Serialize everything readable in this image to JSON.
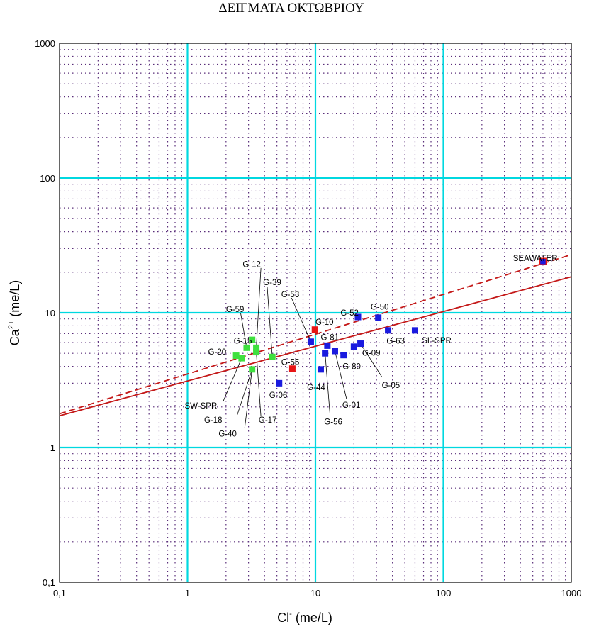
{
  "chart_data": {
    "type": "scatter",
    "title": "ΔΕΙΓΜΑΤΑ ΟΚΤΩΒΡΙΟΥ",
    "xlabel": {
      "base": "Cl",
      "sup": "-",
      "unit": " (me/L)"
    },
    "ylabel": {
      "base": "Ca",
      "sup": "2+",
      "unit": " (me/L)"
    },
    "x_scale": "log",
    "y_scale": "log",
    "xlim": [
      0.1,
      1000
    ],
    "ylim": [
      0.1,
      1000
    ],
    "x_ticks": [
      {
        "value": 0.1,
        "label": "0,1"
      },
      {
        "value": 1,
        "label": "1"
      },
      {
        "value": 10,
        "label": "10"
      },
      {
        "value": 100,
        "label": "100"
      },
      {
        "value": 1000,
        "label": "1000"
      }
    ],
    "y_ticks": [
      {
        "value": 0.1,
        "label": "0,1"
      },
      {
        "value": 1,
        "label": "1"
      },
      {
        "value": 10,
        "label": "10"
      },
      {
        "value": 100,
        "label": "100"
      },
      {
        "value": 1000,
        "label": "1000"
      }
    ],
    "grid": {
      "major": true,
      "minor": true
    },
    "colors": {
      "major_grid": "#00d8e0",
      "minor_grid": "#5a2e7a",
      "green": "#3ee03e",
      "red": "#e81515",
      "blue": "#1a1adf",
      "line": "#c41818",
      "seawater_fill": "#1a1adf",
      "seawater_border": "#e81515"
    },
    "lines": [
      {
        "style": "solid",
        "x": [
          0.1,
          1000
        ],
        "y": [
          1.72,
          18.5
        ]
      },
      {
        "style": "dashed",
        "x": [
          0.1,
          1000
        ],
        "y": [
          1.78,
          27.0
        ]
      }
    ],
    "points": [
      {
        "label": "G-15",
        "x": 3.2,
        "y": 6.3,
        "color": "green"
      },
      {
        "label": "G-20",
        "x": 2.4,
        "y": 4.8,
        "color": "green"
      },
      {
        "label": "SW-SPR",
        "x": 2.65,
        "y": 4.6,
        "color": "green"
      },
      {
        "label": "G-59",
        "x": 2.9,
        "y": 5.5,
        "color": "green"
      },
      {
        "label": "G-12",
        "x": 3.45,
        "y": 5.5,
        "color": "green"
      },
      {
        "label": "G-17",
        "x": 3.45,
        "y": 5.1,
        "color": "green"
      },
      {
        "label": "G-40",
        "x": 3.2,
        "y": 3.8,
        "color": "green"
      },
      {
        "label": "G-39",
        "x": 4.6,
        "y": 4.7,
        "color": "green"
      },
      {
        "label": "G-55",
        "x": 6.6,
        "y": 3.85,
        "color": "red"
      },
      {
        "label": "G-10",
        "x": 9.9,
        "y": 7.5,
        "color": "red"
      },
      {
        "label": "G-06",
        "x": 5.2,
        "y": 3.0,
        "color": "blue"
      },
      {
        "label": "G-53",
        "x": 9.2,
        "y": 6.1,
        "color": "blue"
      },
      {
        "label": "G-44",
        "x": 11.0,
        "y": 3.8,
        "color": "blue"
      },
      {
        "label": "G-81",
        "x": 12.4,
        "y": 5.7,
        "color": "blue"
      },
      {
        "label": "G-56",
        "x": 11.9,
        "y": 5.0,
        "color": "blue"
      },
      {
        "label": "G-01",
        "x": 14.2,
        "y": 5.2,
        "color": "blue"
      },
      {
        "label": "G-80",
        "x": 16.6,
        "y": 4.85,
        "color": "blue"
      },
      {
        "label": "G-09",
        "x": 20.0,
        "y": 5.6,
        "color": "blue"
      },
      {
        "label": "G-05",
        "x": 22.5,
        "y": 5.9,
        "color": "blue"
      },
      {
        "label": "G-52",
        "x": 21.5,
        "y": 9.3,
        "color": "blue"
      },
      {
        "label": "G-50",
        "x": 31.0,
        "y": 9.2,
        "color": "blue"
      },
      {
        "label": "G-63",
        "x": 37.0,
        "y": 7.4,
        "color": "blue"
      },
      {
        "label": "SL-SPR",
        "x": 60.0,
        "y": 7.4,
        "color": "blue"
      },
      {
        "label": "SEAWATER",
        "x": 600.0,
        "y": 24.0,
        "color": "seawater"
      }
    ],
    "annotations": [
      {
        "text": "G-15",
        "tx": 2.3,
        "ty": 6.2,
        "anchor": "start"
      },
      {
        "text": "G-20",
        "tx": 1.45,
        "ty": 5.15,
        "anchor": "start"
      },
      {
        "text": "SW-SPR",
        "tx": 0.95,
        "ty": 2.05,
        "anchor": "start",
        "leader": [
          [
            1.9,
            2.2
          ],
          [
            2.65,
            4.6
          ]
        ]
      },
      {
        "text": "G-18",
        "tx": 1.35,
        "ty": 1.6,
        "anchor": "start",
        "leader": [
          [
            2.45,
            1.75
          ],
          [
            3.2,
            3.8
          ]
        ]
      },
      {
        "text": "G-40",
        "tx": 1.75,
        "ty": 1.27,
        "anchor": "start",
        "leader": [
          [
            2.8,
            1.4
          ],
          [
            3.2,
            3.8
          ]
        ]
      },
      {
        "text": "G-17",
        "tx": 3.6,
        "ty": 1.6,
        "anchor": "start",
        "leader": [
          [
            3.75,
            1.7
          ],
          [
            3.45,
            5.1
          ]
        ]
      },
      {
        "text": "G-59",
        "tx": 2.0,
        "ty": 10.6,
        "anchor": "start",
        "leader": [
          [
            2.6,
            10.0
          ],
          [
            2.9,
            5.5
          ]
        ]
      },
      {
        "text": "G-12",
        "tx": 2.7,
        "ty": 23.0,
        "anchor": "start",
        "leader": [
          [
            3.75,
            21.5
          ],
          [
            3.45,
            5.5
          ]
        ]
      },
      {
        "text": "G-39",
        "tx": 3.9,
        "ty": 16.8,
        "anchor": "start",
        "leader": [
          [
            4.2,
            15.5
          ],
          [
            4.6,
            4.7
          ]
        ]
      },
      {
        "text": "G-53",
        "tx": 5.4,
        "ty": 13.7,
        "anchor": "start",
        "leader": [
          [
            6.5,
            12.9
          ],
          [
            9.2,
            6.1
          ]
        ]
      },
      {
        "text": "G-10",
        "tx": 10.0,
        "ty": 8.55,
        "anchor": "start"
      },
      {
        "text": "G-81",
        "tx": 11.0,
        "ty": 6.6,
        "anchor": "start"
      },
      {
        "text": "G-55",
        "tx": 5.4,
        "ty": 4.3,
        "anchor": "start"
      },
      {
        "text": "G-06",
        "tx": 4.35,
        "ty": 2.45,
        "anchor": "start"
      },
      {
        "text": "G-44",
        "tx": 8.6,
        "ty": 2.8,
        "anchor": "start"
      },
      {
        "text": "G-56",
        "tx": 11.7,
        "ty": 1.56,
        "anchor": "start",
        "leader": [
          [
            13.0,
            1.75
          ],
          [
            11.9,
            5.0
          ]
        ]
      },
      {
        "text": "G-01",
        "tx": 16.2,
        "ty": 2.07,
        "anchor": "start",
        "leader": [
          [
            17.5,
            2.3
          ],
          [
            14.2,
            5.2
          ]
        ]
      },
      {
        "text": "G-80",
        "tx": 16.3,
        "ty": 4.0,
        "anchor": "start"
      },
      {
        "text": "G-09",
        "tx": 23.2,
        "ty": 5.05,
        "anchor": "start"
      },
      {
        "text": "G-05",
        "tx": 33.0,
        "ty": 2.9,
        "anchor": "start",
        "leader": [
          [
            33.0,
            3.35
          ],
          [
            22.5,
            5.9
          ]
        ]
      },
      {
        "text": "G-52",
        "tx": 15.7,
        "ty": 10.0,
        "anchor": "start"
      },
      {
        "text": "G-50",
        "tx": 27.0,
        "ty": 11.1,
        "anchor": "start"
      },
      {
        "text": "G-63",
        "tx": 36.0,
        "ty": 6.2,
        "anchor": "start"
      },
      {
        "text": "SL-SPR",
        "tx": 68.0,
        "ty": 6.25,
        "anchor": "start"
      },
      {
        "text": "SEAWATER",
        "tx": 350.0,
        "ty": 25.5,
        "anchor": "start"
      }
    ]
  }
}
